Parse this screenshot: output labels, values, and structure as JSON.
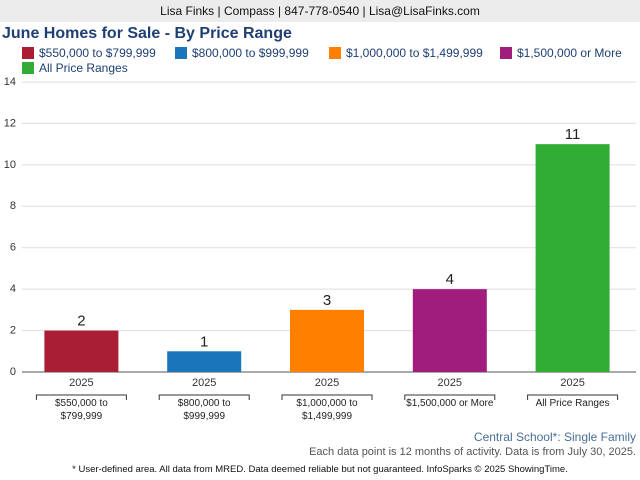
{
  "header": "Lisa Finks | Compass | 847-778-0540 | Lisa@LisaFinks.com",
  "chart_data": {
    "type": "bar",
    "title": "June Homes for Sale - By Price Range",
    "period": "2025",
    "series": [
      {
        "name": "$550,000 to $799,999",
        "color": "#a91d35",
        "values": [
          2
        ]
      },
      {
        "name": "$800,000 to $999,999",
        "color": "#1a75bb",
        "values": [
          1
        ]
      },
      {
        "name": "$1,000,000 to $1,499,999",
        "color": "#ff8000",
        "values": [
          3
        ]
      },
      {
        "name": "$1,500,000 or More",
        "color": "#a01c7d",
        "values": [
          4
        ]
      },
      {
        "name": "All Price Ranges",
        "color": "#31ad35",
        "values": [
          11
        ]
      }
    ],
    "ylim": [
      0,
      14
    ],
    "yticks": [
      0,
      2,
      4,
      6,
      8,
      10,
      12,
      14
    ],
    "grid": true
  },
  "footer": {
    "area": "Central School*: Single Family",
    "note": "Each data point is 12 months of activity. Data is from July 30, 2025.",
    "disclaimer": "* User-defined area. All data from MRED. Data deemed reliable but not guaranteed. InfoSparks © 2025 ShowingTime."
  }
}
